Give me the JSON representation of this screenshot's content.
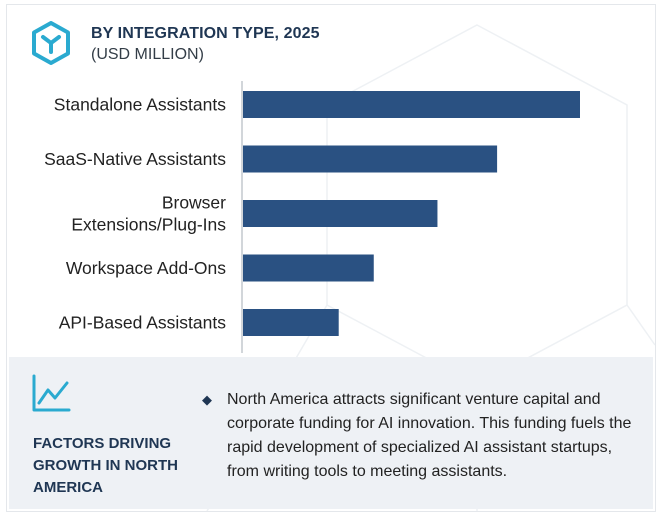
{
  "header": {
    "title": "BY INTEGRATION TYPE, 2025",
    "subtitle": "(USD MILLION)",
    "logo_icon": "hexagon-logo-icon"
  },
  "chart_data": {
    "type": "bar",
    "orientation": "horizontal",
    "categories": [
      "Standalone Assistants",
      "SaaS-Native Assistants",
      "Browser Extensions/Plug-Ins",
      "Workspace Add-Ons",
      "API-Based Assistants"
    ],
    "category_lines": [
      [
        "Standalone Assistants"
      ],
      [
        "SaaS-Native Assistants"
      ],
      [
        "Browser",
        "Extensions/Plug-Ins"
      ],
      [
        "Workspace Add-Ons"
      ],
      [
        "API-Based Assistants"
      ]
    ],
    "values": [
      100,
      75.4,
      57.7,
      38.8,
      28.4
    ],
    "bar_color": "#2a5182",
    "grid": false,
    "value_axis_labels": false
  },
  "factors": {
    "icon": "trend-line-icon",
    "title": "FACTORS DRIVING GROWTH IN NORTH AMERICA",
    "bullet_icon": "diamond-bullet-icon",
    "text": "North America attracts significant venture capital and corporate funding for AI innovation. This funding fuels the rapid development of specialized AI assistant startups, from writing tools to meeting assistants."
  },
  "colors": {
    "navy": "#1f3653",
    "bar": "#2a5182",
    "logo_teal": "#2aaad0",
    "panel_bg": "#eef1f5"
  }
}
